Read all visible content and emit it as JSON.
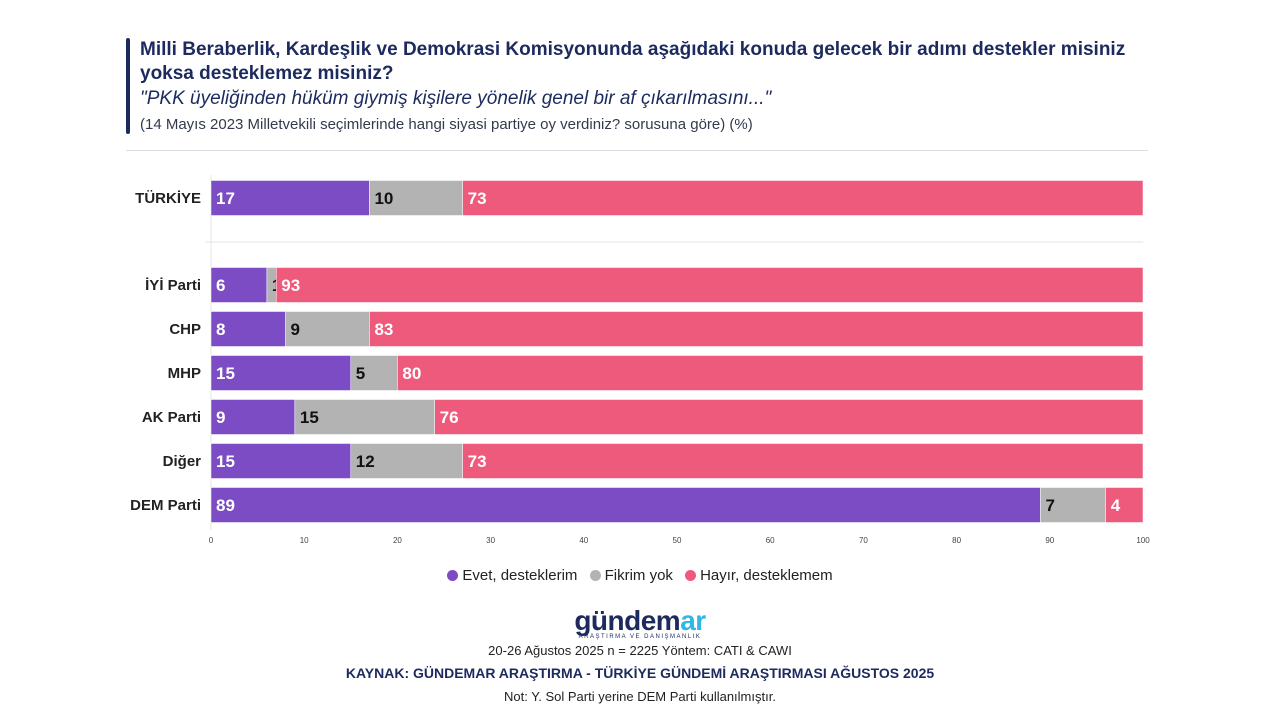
{
  "header": {
    "title": "Milli Beraberlik, Kardeşlik ve Demokrasi Komisyonunda aşağıdaki konuda gelecek bir adımı destekler misiniz yoksa desteklemez misiniz?",
    "quote": "\"PKK üyeliğinden hüküm giymiş kişilere yönelik genel bir af çıkarılmasını...\"",
    "subtitle": "(14 Mayıs 2023 Milletvekili seçimlerinde hangi siyasi partiye oy verdiniz? sorusuna göre) (%)"
  },
  "colors": {
    "evet": "#7b4cc4",
    "fikrim": "#b3b3b3",
    "hayir": "#ee5a7c",
    "title": "#1c2a5e",
    "logo_accent": "#2fb7e6"
  },
  "chart_data": {
    "type": "bar",
    "orientation": "horizontal",
    "stacked": true,
    "categories": [
      "TÜRKİYE",
      "İYİ Parti",
      "CHP",
      "MHP",
      "AK Parti",
      "Diğer",
      "DEM Parti"
    ],
    "series": [
      {
        "name": "Evet, desteklerim",
        "values": [
          17,
          6,
          8,
          15,
          9,
          15,
          89
        ]
      },
      {
        "name": "Fikrim yok",
        "values": [
          10,
          1,
          9,
          5,
          15,
          12,
          7
        ]
      },
      {
        "name": "Hayır, desteklemem",
        "values": [
          73,
          93,
          83,
          80,
          76,
          73,
          4
        ]
      }
    ],
    "xlim": [
      0,
      100
    ],
    "xticks": [
      0,
      10,
      20,
      30,
      40,
      50,
      60,
      70,
      80,
      90,
      100
    ],
    "legend_position": "bottom-center",
    "grid": false
  },
  "legend": {
    "evet": "Evet, desteklerim",
    "fikrim": "Fikrim yok",
    "hayir": "Hayır, desteklemem"
  },
  "footer": {
    "logo_main": "gündem",
    "logo_accent": "ar",
    "logo_sub": "ARAŞTIRMA VE DANIŞMANLIK",
    "method": "20-26 Ağustos 2025 n = 2225 Yöntem: CATI & CAWI",
    "source": "KAYNAK: GÜNDEMAR ARAŞTIRMA - TÜRKİYE GÜNDEMİ ARAŞTIRMASI AĞUSTOS 2025",
    "note": "Not: Y. Sol Parti yerine DEM Parti kullanılmıştır."
  }
}
